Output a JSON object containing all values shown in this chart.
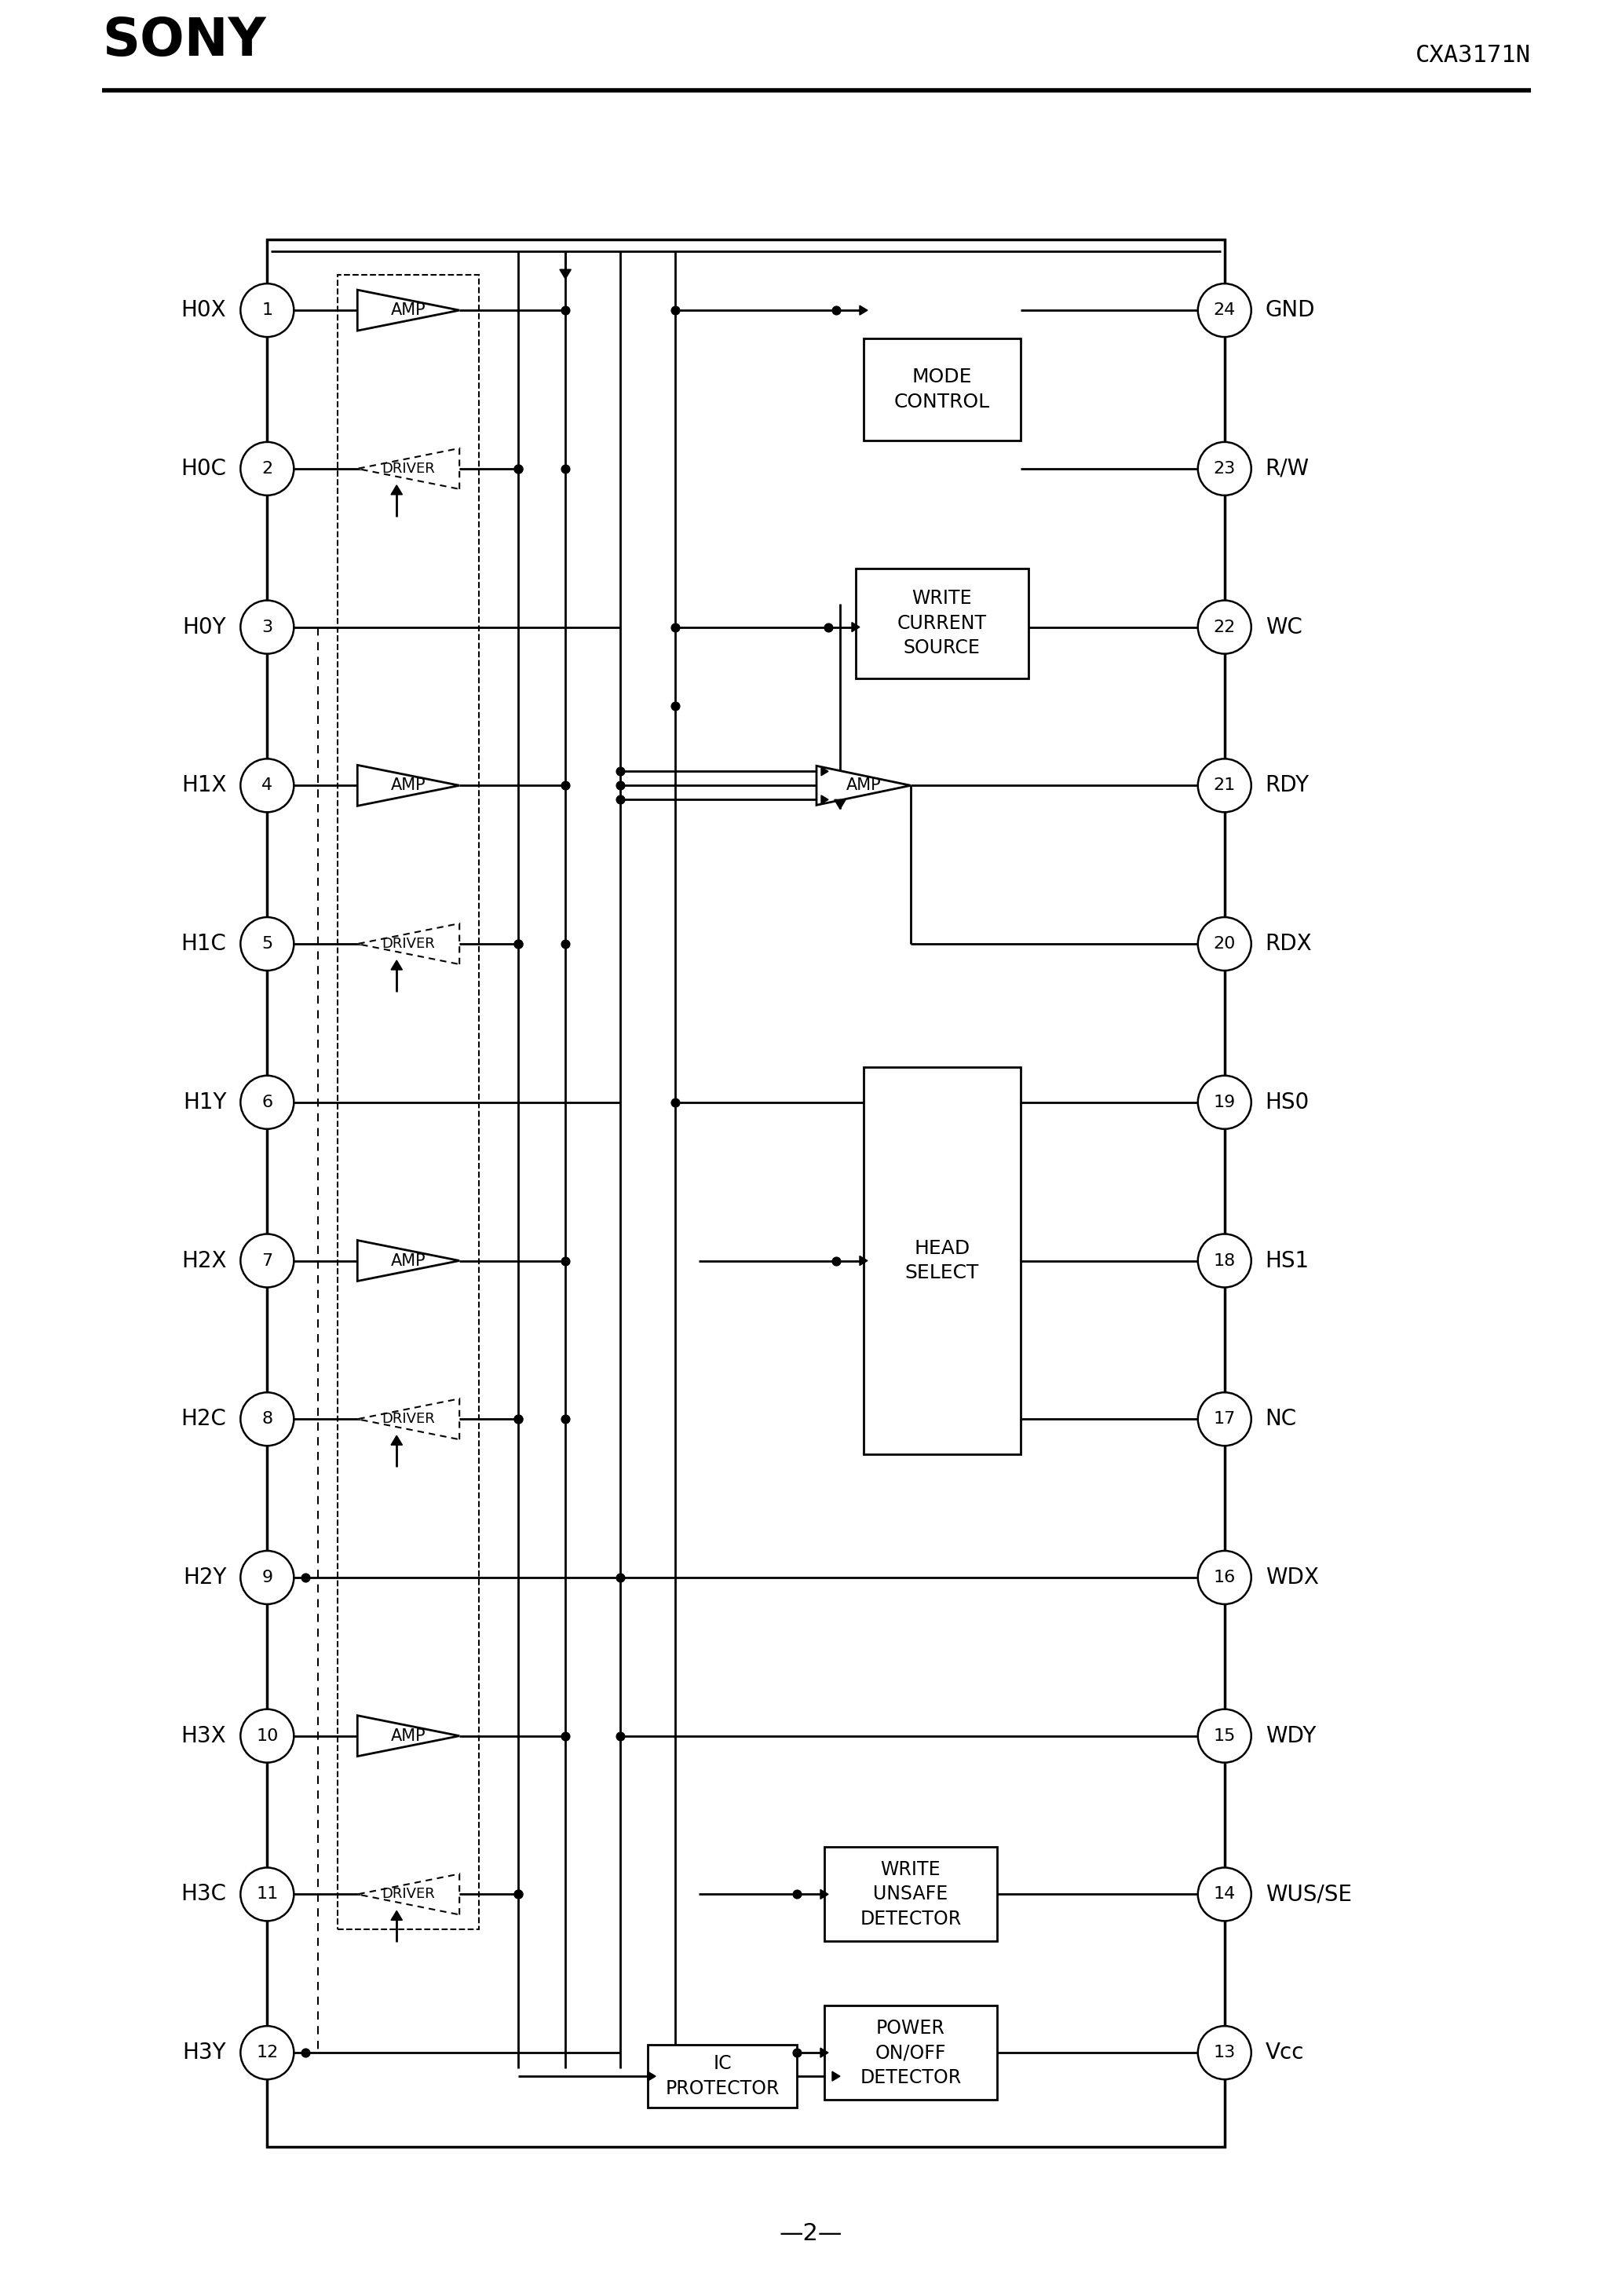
{
  "title": "SONY",
  "part_number": "CXA3171N",
  "page_number": "—2—",
  "bg_color": "#ffffff",
  "left_pins": [
    {
      "num": "1",
      "label": "H0X"
    },
    {
      "num": "2",
      "label": "H0C"
    },
    {
      "num": "3",
      "label": "H0Y"
    },
    {
      "num": "4",
      "label": "H1X"
    },
    {
      "num": "5",
      "label": "H1C"
    },
    {
      "num": "6",
      "label": "H1Y"
    },
    {
      "num": "7",
      "label": "H2X"
    },
    {
      "num": "8",
      "label": "H2C"
    },
    {
      "num": "9",
      "label": "H2Y"
    },
    {
      "num": "10",
      "label": "H3X"
    },
    {
      "num": "11",
      "label": "H3C"
    },
    {
      "num": "12",
      "label": "H3Y"
    }
  ],
  "right_pins": [
    {
      "num": "24",
      "label": "GND"
    },
    {
      "num": "23",
      "label": "R/W"
    },
    {
      "num": "22",
      "label": "WC"
    },
    {
      "num": "21",
      "label": "RDY"
    },
    {
      "num": "20",
      "label": "RDX"
    },
    {
      "num": "19",
      "label": "HS0"
    },
    {
      "num": "18",
      "label": "HS1"
    },
    {
      "num": "17",
      "label": "NC"
    },
    {
      "num": "16",
      "label": "WDX"
    },
    {
      "num": "15",
      "label": "WDY"
    },
    {
      "num": "14",
      "label": "WUS/SE"
    },
    {
      "num": "13",
      "label": "Vcc"
    }
  ]
}
